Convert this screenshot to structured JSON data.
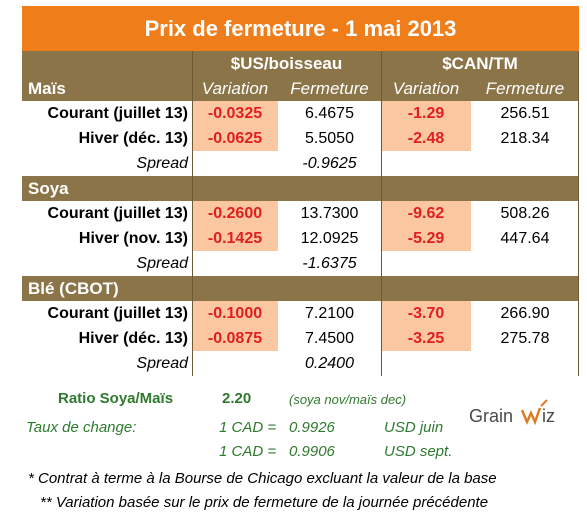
{
  "title": "Prix de fermeture - 1 mai 2013",
  "header": {
    "usd_group": "$US/boisseau",
    "cad_group": "$CAN/TM",
    "variation": "Variation",
    "fermeture": "Fermeture"
  },
  "sections": [
    {
      "name": "Maïs",
      "rows": [
        {
          "label": "Courant (juillet 13)",
          "us_var": "-0.0325",
          "us_close": "6.4675",
          "cad_var": "-1.29",
          "cad_close": "256.51"
        },
        {
          "label": "Hiver (déc. 13)",
          "us_var": "-0.0625",
          "us_close": "5.5050",
          "cad_var": "-2.48",
          "cad_close": "218.34"
        }
      ],
      "spread_label": "Spread",
      "spread_value": "-0.9625"
    },
    {
      "name": "Soya",
      "rows": [
        {
          "label": "Courant (juillet 13)",
          "us_var": "-0.2600",
          "us_close": "13.7300",
          "cad_var": "-9.62",
          "cad_close": "508.26"
        },
        {
          "label": "Hiver (nov. 13)",
          "us_var": "-0.1425",
          "us_close": "12.0925",
          "cad_var": "-5.29",
          "cad_close": "447.64"
        }
      ],
      "spread_label": "Spread",
      "spread_value": "-1.6375"
    },
    {
      "name": "Blé (CBOT)",
      "rows": [
        {
          "label": "Courant (juillet 13)",
          "us_var": "-0.1000",
          "us_close": "7.2100",
          "cad_var": "-3.70",
          "cad_close": "266.90"
        },
        {
          "label": "Hiver (déc. 13)",
          "us_var": "-0.0875",
          "us_close": "7.4500",
          "cad_var": "-3.25",
          "cad_close": "275.78"
        }
      ],
      "spread_label": "Spread",
      "spread_value": "0.2400"
    }
  ],
  "ratio": {
    "label": "Ratio Soya/Maïs",
    "value": "2.20",
    "note": "(soya nov/maïs dec)"
  },
  "exchange": {
    "label": "Taux de change:",
    "rows": [
      {
        "eq": "1 CAD =",
        "value": "0.9926",
        "unit": "USD juin"
      },
      {
        "eq": "1 CAD =",
        "value": "0.9906",
        "unit": "USD sept."
      }
    ]
  },
  "notes": [
    "* Contrat à terme à la Bourse de Chicago excluant la valeur de la base",
    "** Variation basée sur le prix de fermeture de la journée précédente"
  ],
  "logo": {
    "text_left": "Grain",
    "text_right": "iz"
  },
  "colors": {
    "title_bg": "#ef7d1a",
    "brown": "#8b7448",
    "peach": "#fac7a0",
    "negative": "#e02020",
    "green": "#2f7a2f"
  }
}
